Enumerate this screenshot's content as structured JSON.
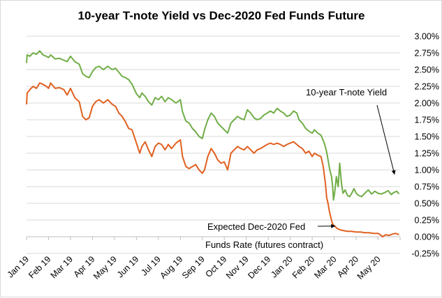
{
  "chart_data": {
    "type": "line",
    "title": "10-year T-note Yield vs Dec-2020 Fed Funds Future",
    "xlabel": "",
    "ylabel": "",
    "ylim": [
      -0.25,
      3.0
    ],
    "y_tick_labels": [
      "-0.25%",
      "0.00%",
      "0.25%",
      "0.50%",
      "0.75%",
      "1.00%",
      "1.25%",
      "1.50%",
      "1.75%",
      "2.00%",
      "2.25%",
      "2.50%",
      "2.75%",
      "3.00%"
    ],
    "x_tick_labels": [
      "Jan 19",
      "Feb 19",
      "Mar 19",
      "Apr 19",
      "May 19",
      "Jun 19",
      "Jul 19",
      "Aug 19",
      "Sep 19",
      "Oct 19",
      "Nov 19",
      "Dec 19",
      "Jan 20",
      "Feb 20",
      "Mar 20",
      "Apr 20",
      "May 20"
    ],
    "y_axis_position": "right",
    "grid": "horizontal",
    "legend": "none",
    "x_unit": "months since Jan 2019",
    "series": [
      {
        "color": "#70ad47",
        "points": [
          [
            0.0,
            2.6
          ],
          [
            0.03,
            2.72
          ],
          [
            0.15,
            2.7
          ],
          [
            0.3,
            2.75
          ],
          [
            0.45,
            2.73
          ],
          [
            0.6,
            2.78
          ],
          [
            0.75,
            2.72
          ],
          [
            0.9,
            2.7
          ],
          [
            1.0,
            2.68
          ],
          [
            1.1,
            2.72
          ],
          [
            1.3,
            2.66
          ],
          [
            1.5,
            2.67
          ],
          [
            1.7,
            2.64
          ],
          [
            1.85,
            2.62
          ],
          [
            2.0,
            2.7
          ],
          [
            2.2,
            2.62
          ],
          [
            2.4,
            2.58
          ],
          [
            2.55,
            2.44
          ],
          [
            2.7,
            2.4
          ],
          [
            2.85,
            2.38
          ],
          [
            3.0,
            2.47
          ],
          [
            3.15,
            2.53
          ],
          [
            3.3,
            2.55
          ],
          [
            3.5,
            2.5
          ],
          [
            3.7,
            2.55
          ],
          [
            3.9,
            2.5
          ],
          [
            4.05,
            2.52
          ],
          [
            4.2,
            2.46
          ],
          [
            4.35,
            2.4
          ],
          [
            4.5,
            2.38
          ],
          [
            4.65,
            2.35
          ],
          [
            4.8,
            2.28
          ],
          [
            5.0,
            2.14
          ],
          [
            5.15,
            2.08
          ],
          [
            5.25,
            2.15
          ],
          [
            5.4,
            2.1
          ],
          [
            5.55,
            2.02
          ],
          [
            5.7,
            1.97
          ],
          [
            5.85,
            2.08
          ],
          [
            6.0,
            2.05
          ],
          [
            6.15,
            2.1
          ],
          [
            6.3,
            2.02
          ],
          [
            6.45,
            2.08
          ],
          [
            6.6,
            2.05
          ],
          [
            6.8,
            2.0
          ],
          [
            7.0,
            2.05
          ],
          [
            7.1,
            1.87
          ],
          [
            7.25,
            1.73
          ],
          [
            7.4,
            1.7
          ],
          [
            7.55,
            1.62
          ],
          [
            7.7,
            1.57
          ],
          [
            7.85,
            1.5
          ],
          [
            8.0,
            1.47
          ],
          [
            8.1,
            1.6
          ],
          [
            8.25,
            1.75
          ],
          [
            8.4,
            1.85
          ],
          [
            8.55,
            1.8
          ],
          [
            8.7,
            1.7
          ],
          [
            8.85,
            1.65
          ],
          [
            9.0,
            1.6
          ],
          [
            9.15,
            1.55
          ],
          [
            9.3,
            1.7
          ],
          [
            9.45,
            1.75
          ],
          [
            9.6,
            1.8
          ],
          [
            9.75,
            1.77
          ],
          [
            9.9,
            1.75
          ],
          [
            10.05,
            1.9
          ],
          [
            10.2,
            1.85
          ],
          [
            10.35,
            1.78
          ],
          [
            10.5,
            1.75
          ],
          [
            10.65,
            1.77
          ],
          [
            10.8,
            1.82
          ],
          [
            10.95,
            1.85
          ],
          [
            11.1,
            1.88
          ],
          [
            11.25,
            1.85
          ],
          [
            11.4,
            1.92
          ],
          [
            11.55,
            1.88
          ],
          [
            11.7,
            1.85
          ],
          [
            11.85,
            1.8
          ],
          [
            12.0,
            1.82
          ],
          [
            12.15,
            1.88
          ],
          [
            12.3,
            1.85
          ],
          [
            12.4,
            1.75
          ],
          [
            12.55,
            1.7
          ],
          [
            12.7,
            1.62
          ],
          [
            12.85,
            1.58
          ],
          [
            13.0,
            1.55
          ],
          [
            13.1,
            1.6
          ],
          [
            13.25,
            1.55
          ],
          [
            13.4,
            1.52
          ],
          [
            13.55,
            1.4
          ],
          [
            13.65,
            1.28
          ],
          [
            13.72,
            1.15
          ],
          [
            13.8,
            1.0
          ],
          [
            13.88,
            0.9
          ],
          [
            13.93,
            0.75
          ],
          [
            13.97,
            0.55
          ],
          [
            14.02,
            0.65
          ],
          [
            14.1,
            0.9
          ],
          [
            14.18,
            0.75
          ],
          [
            14.25,
            1.1
          ],
          [
            14.33,
            0.8
          ],
          [
            14.4,
            0.65
          ],
          [
            14.5,
            0.7
          ],
          [
            14.6,
            0.62
          ],
          [
            14.7,
            0.6
          ],
          [
            14.8,
            0.65
          ],
          [
            14.9,
            0.72
          ],
          [
            15.0,
            0.65
          ],
          [
            15.1,
            0.62
          ],
          [
            15.25,
            0.6
          ],
          [
            15.4,
            0.65
          ],
          [
            15.55,
            0.7
          ],
          [
            15.7,
            0.64
          ],
          [
            15.85,
            0.68
          ],
          [
            16.0,
            0.65
          ],
          [
            16.15,
            0.64
          ],
          [
            16.3,
            0.66
          ],
          [
            16.45,
            0.69
          ],
          [
            16.6,
            0.63
          ],
          [
            16.7,
            0.66
          ],
          [
            16.85,
            0.68
          ],
          [
            16.95,
            0.64
          ]
        ]
      },
      {
        "color": "#e06020",
        "points": [
          [
            0.0,
            1.98
          ],
          [
            0.03,
            2.15
          ],
          [
            0.15,
            2.2
          ],
          [
            0.3,
            2.25
          ],
          [
            0.45,
            2.22
          ],
          [
            0.6,
            2.3
          ],
          [
            0.75,
            2.28
          ],
          [
            0.9,
            2.25
          ],
          [
            1.0,
            2.22
          ],
          [
            1.1,
            2.3
          ],
          [
            1.3,
            2.22
          ],
          [
            1.5,
            2.23
          ],
          [
            1.7,
            2.2
          ],
          [
            1.85,
            2.12
          ],
          [
            2.0,
            2.22
          ],
          [
            2.2,
            2.08
          ],
          [
            2.4,
            2.02
          ],
          [
            2.55,
            1.8
          ],
          [
            2.7,
            1.75
          ],
          [
            2.85,
            1.78
          ],
          [
            3.0,
            1.95
          ],
          [
            3.15,
            2.02
          ],
          [
            3.3,
            2.05
          ],
          [
            3.5,
            2.0
          ],
          [
            3.7,
            2.05
          ],
          [
            3.9,
            1.98
          ],
          [
            4.05,
            1.95
          ],
          [
            4.2,
            1.85
          ],
          [
            4.35,
            1.8
          ],
          [
            4.5,
            1.72
          ],
          [
            4.65,
            1.62
          ],
          [
            4.8,
            1.6
          ],
          [
            5.0,
            1.4
          ],
          [
            5.15,
            1.25
          ],
          [
            5.25,
            1.35
          ],
          [
            5.4,
            1.42
          ],
          [
            5.55,
            1.3
          ],
          [
            5.7,
            1.2
          ],
          [
            5.85,
            1.35
          ],
          [
            6.0,
            1.4
          ],
          [
            6.15,
            1.38
          ],
          [
            6.3,
            1.3
          ],
          [
            6.45,
            1.38
          ],
          [
            6.6,
            1.32
          ],
          [
            6.8,
            1.4
          ],
          [
            7.0,
            1.45
          ],
          [
            7.1,
            1.2
          ],
          [
            7.25,
            1.05
          ],
          [
            7.4,
            1.02
          ],
          [
            7.55,
            1.05
          ],
          [
            7.7,
            1.08
          ],
          [
            7.85,
            1.0
          ],
          [
            8.0,
            0.95
          ],
          [
            8.1,
            1.0
          ],
          [
            8.25,
            1.2
          ],
          [
            8.4,
            1.32
          ],
          [
            8.55,
            1.25
          ],
          [
            8.7,
            1.15
          ],
          [
            8.85,
            1.1
          ],
          [
            9.0,
            1.12
          ],
          [
            9.15,
            1.0
          ],
          [
            9.3,
            1.25
          ],
          [
            9.45,
            1.3
          ],
          [
            9.6,
            1.35
          ],
          [
            9.75,
            1.32
          ],
          [
            9.9,
            1.3
          ],
          [
            10.05,
            1.35
          ],
          [
            10.2,
            1.3
          ],
          [
            10.35,
            1.25
          ],
          [
            10.5,
            1.3
          ],
          [
            10.65,
            1.32
          ],
          [
            10.8,
            1.35
          ],
          [
            10.95,
            1.38
          ],
          [
            11.1,
            1.4
          ],
          [
            11.25,
            1.38
          ],
          [
            11.4,
            1.4
          ],
          [
            11.55,
            1.38
          ],
          [
            11.7,
            1.35
          ],
          [
            11.85,
            1.38
          ],
          [
            12.0,
            1.4
          ],
          [
            12.15,
            1.42
          ],
          [
            12.3,
            1.38
          ],
          [
            12.4,
            1.35
          ],
          [
            12.55,
            1.32
          ],
          [
            12.7,
            1.25
          ],
          [
            12.85,
            1.28
          ],
          [
            13.0,
            1.2
          ],
          [
            13.1,
            1.25
          ],
          [
            13.25,
            1.22
          ],
          [
            13.4,
            1.2
          ],
          [
            13.5,
            1.05
          ],
          [
            13.6,
            0.8
          ],
          [
            13.66,
            0.58
          ],
          [
            13.72,
            0.5
          ],
          [
            13.78,
            0.38
          ],
          [
            13.84,
            0.3
          ],
          [
            13.9,
            0.22
          ],
          [
            13.95,
            0.18
          ],
          [
            14.05,
            0.15
          ],
          [
            14.15,
            0.12
          ],
          [
            14.3,
            0.1
          ],
          [
            14.45,
            0.09
          ],
          [
            14.6,
            0.08
          ],
          [
            14.8,
            0.08
          ],
          [
            15.0,
            0.07
          ],
          [
            15.2,
            0.07
          ],
          [
            15.4,
            0.06
          ],
          [
            15.6,
            0.06
          ],
          [
            15.8,
            0.05
          ],
          [
            16.0,
            0.05
          ],
          [
            16.1,
            0.03
          ],
          [
            16.2,
            0.0
          ],
          [
            16.35,
            0.03
          ],
          [
            16.5,
            0.02
          ],
          [
            16.65,
            0.04
          ],
          [
            16.8,
            0.05
          ],
          [
            16.95,
            0.03
          ]
        ]
      }
    ],
    "annotations": [
      {
        "text": "10-year T-note Yield",
        "target": [
          16.75,
          0.93
        ]
      },
      {
        "text": "Expected Dec-2020 Fed",
        "target": [
          14.05,
          0.16
        ]
      },
      {
        "text": "Funds Rate (futures contract)"
      }
    ]
  }
}
